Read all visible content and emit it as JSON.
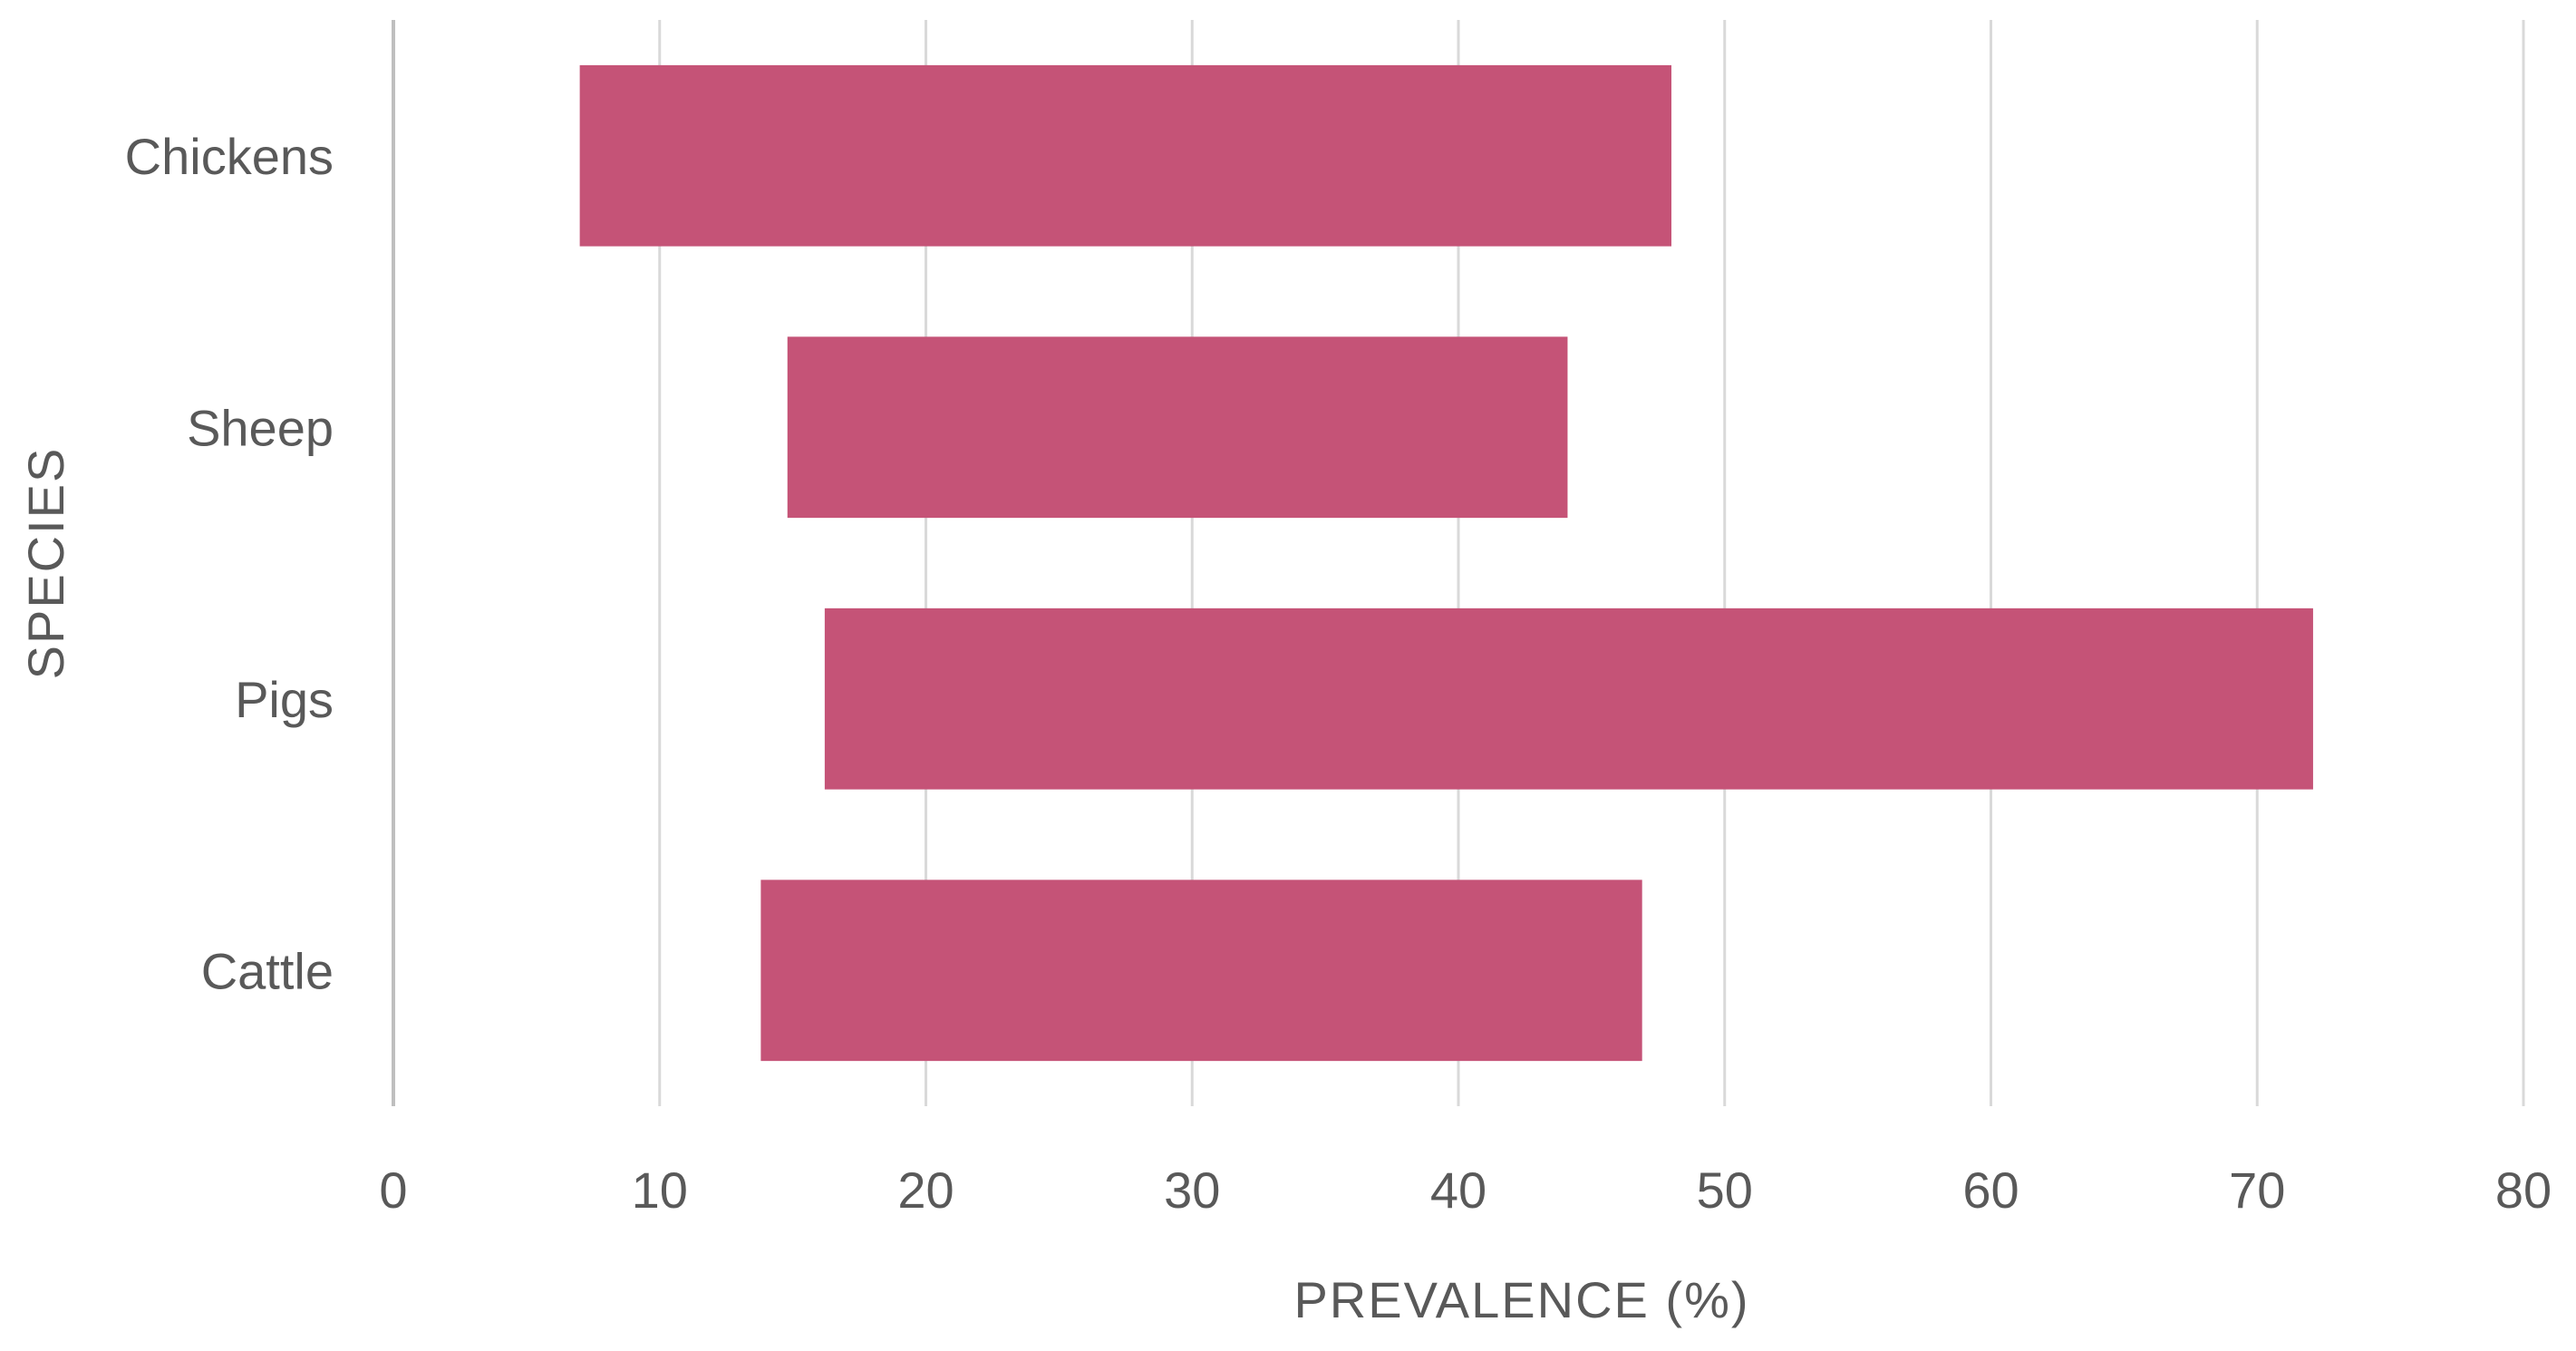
{
  "chart_data": {
    "type": "bar",
    "orientation": "horizontal",
    "style": "floating-range",
    "categories": [
      "Chickens",
      "Sheep",
      "Pigs",
      "Cattle"
    ],
    "series": [
      {
        "ranges": [
          [
            7,
            48
          ],
          [
            14.8,
            44.1
          ],
          [
            16.2,
            72.1
          ],
          [
            13.8,
            46.9
          ]
        ],
        "color": "#c55377"
      }
    ],
    "xlabel": "PREVALENCE (%)",
    "ylabel": "SPECIES",
    "xlim": [
      0,
      80
    ],
    "xticks": [
      0,
      10,
      20,
      30,
      40,
      50,
      60,
      70,
      80
    ],
    "grid": "vertical",
    "legend": "none"
  }
}
